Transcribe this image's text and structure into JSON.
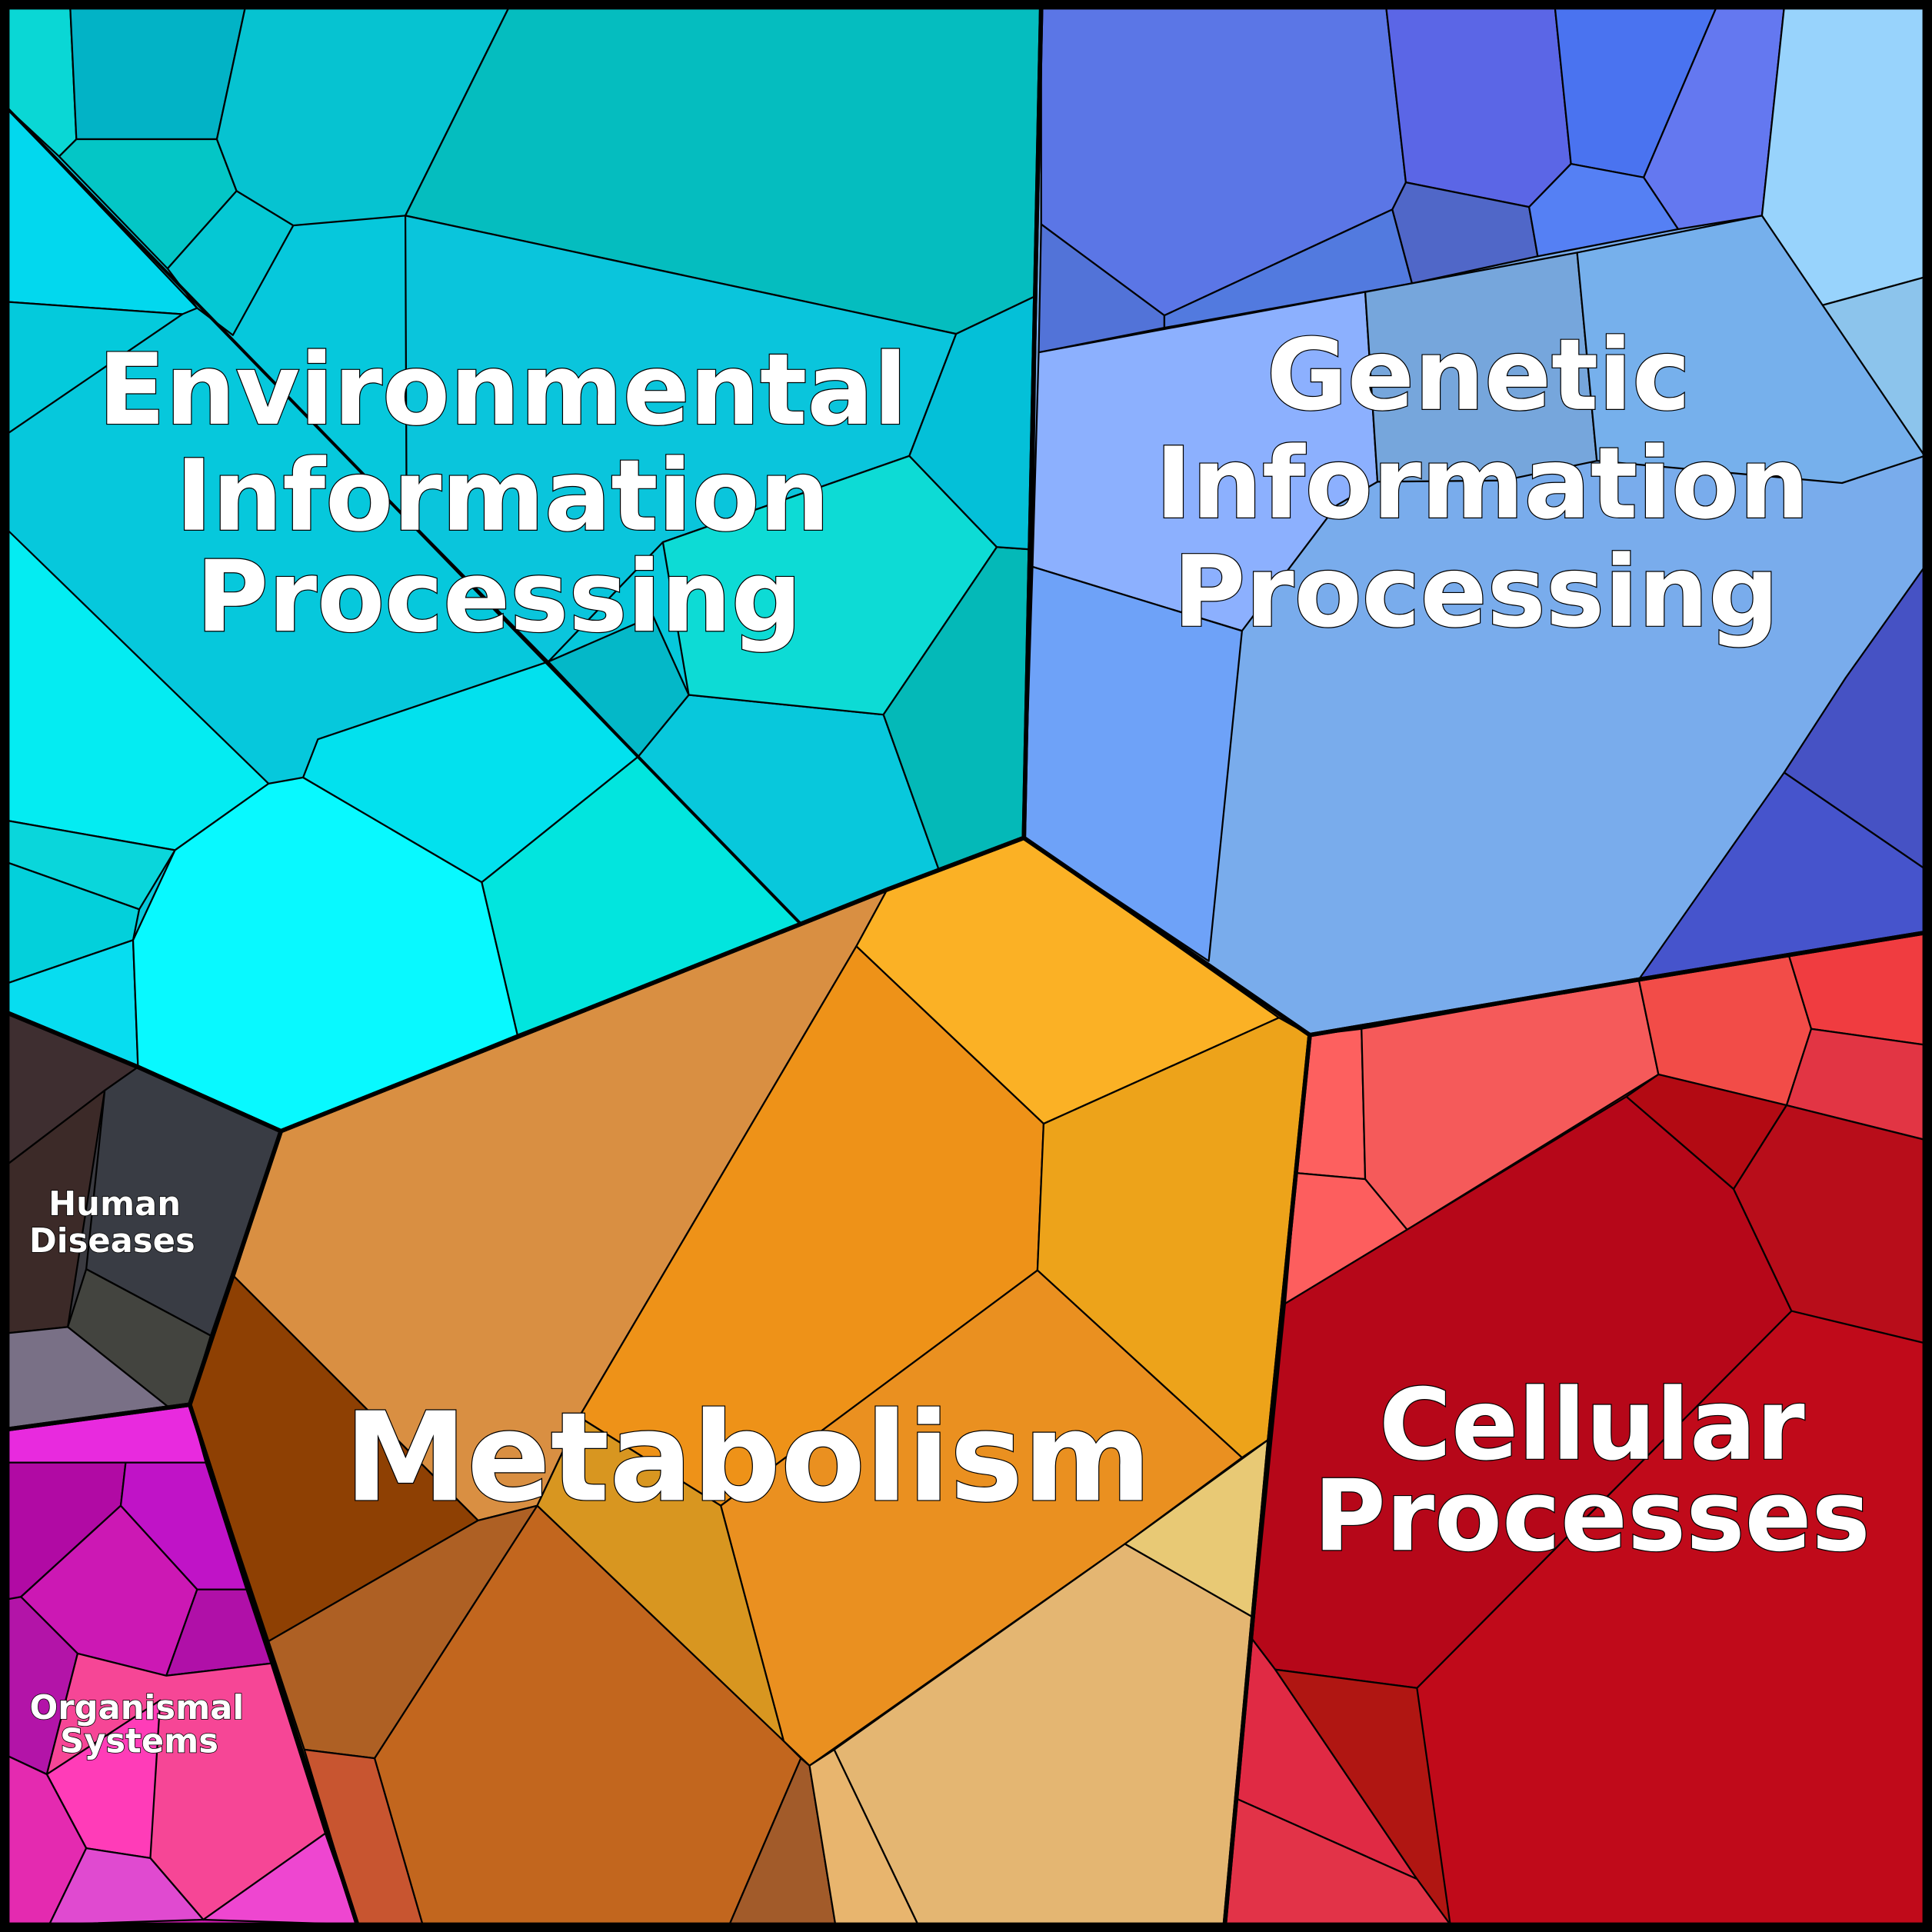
{
  "regions": [
    {
      "lines": [
        "Environmental",
        "Information",
        "Processing"
      ]
    },
    {
      "lines": [
        "Genetic",
        "Information",
        "Processing"
      ]
    },
    {
      "lines": [
        "Metabolism"
      ]
    },
    {
      "lines": [
        "Cellular",
        "Processes"
      ]
    },
    {
      "lines": [
        "Human",
        "Diseases"
      ]
    },
    {
      "lines": [
        "Organismal",
        "Systems"
      ]
    }
  ]
}
